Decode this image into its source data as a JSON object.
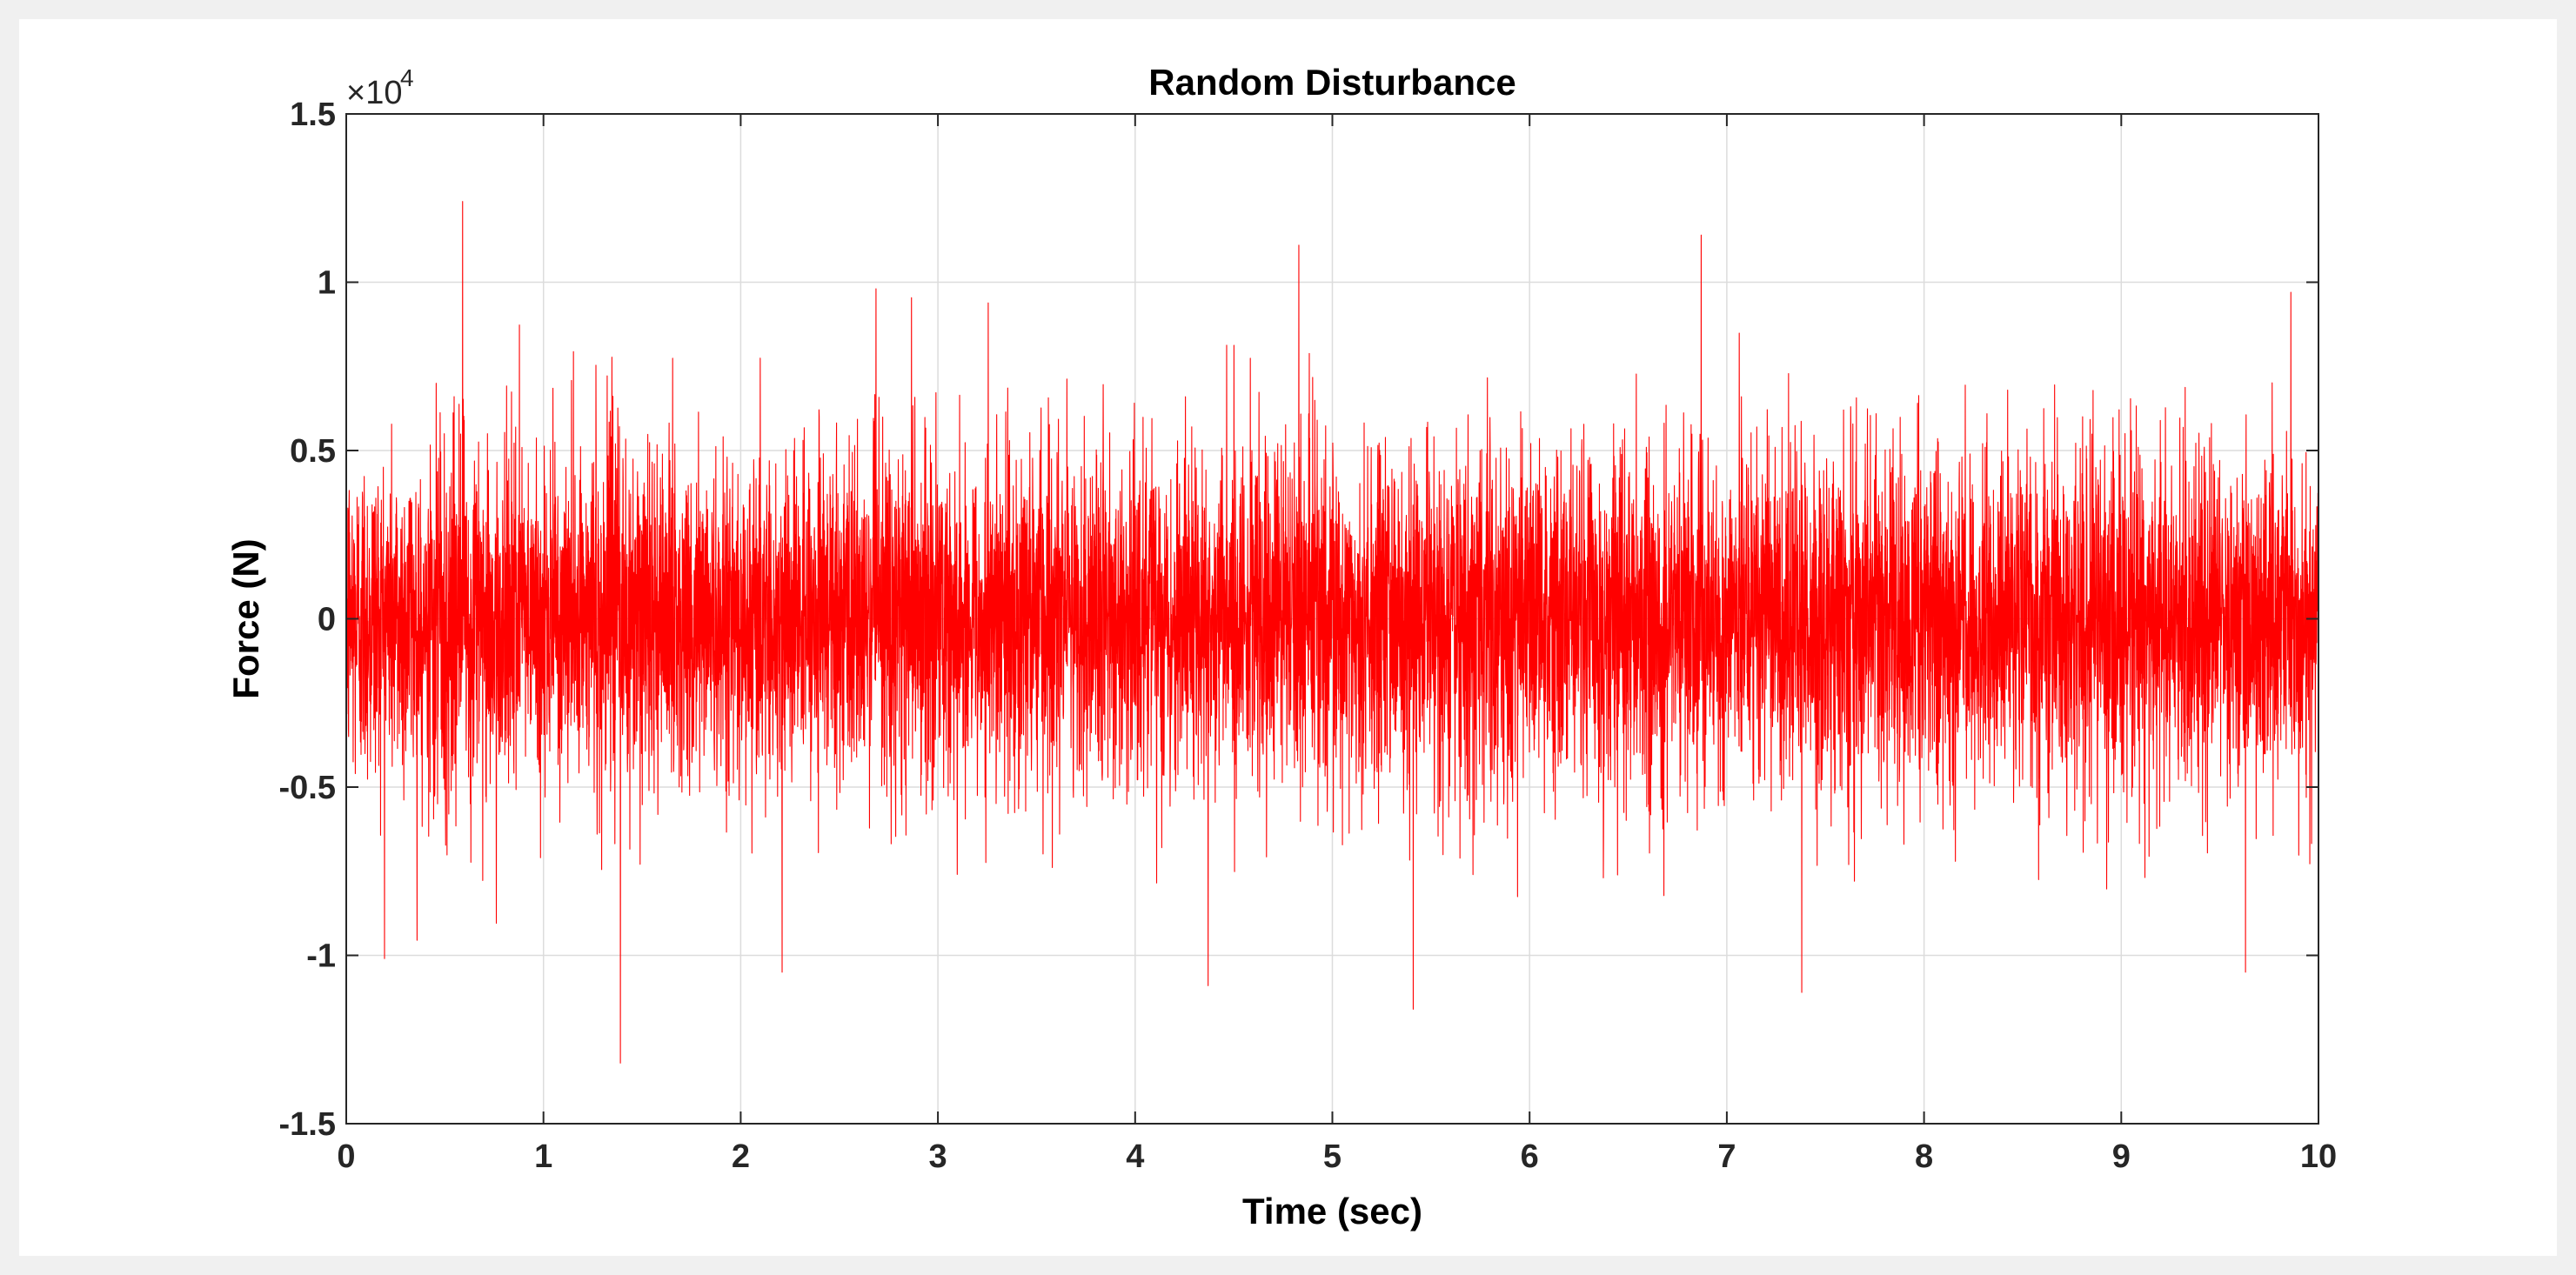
{
  "chart_data": {
    "type": "line",
    "title": "Random Disturbance",
    "xlabel": "Time (sec)",
    "ylabel": "Force (N)",
    "xlim": [
      0,
      10
    ],
    "ylim": [
      -15000,
      15000
    ],
    "x_ticks": [
      0,
      1,
      2,
      3,
      4,
      5,
      6,
      7,
      8,
      9,
      10
    ],
    "x_tick_labels": [
      "0",
      "1",
      "2",
      "3",
      "4",
      "5",
      "6",
      "7",
      "8",
      "9",
      "10"
    ],
    "y_ticks": [
      -15000,
      -10000,
      -5000,
      0,
      5000,
      10000,
      15000
    ],
    "y_tick_labels": [
      "-1.5",
      "-1",
      "-0.5",
      "0",
      "0.5",
      "1",
      "1.5"
    ],
    "y_exponent_label": "×10",
    "y_exponent_power": "4",
    "grid": true,
    "line_color": "#ff0000",
    "series": [
      {
        "sample_interval": 0.001,
        "samples_count": 10001,
        "mean": 0,
        "std_dev": 2500,
        "notable_peaks": [
          {
            "x": 0.59,
            "y": 12400
          },
          {
            "x": 4.83,
            "y": 11100
          },
          {
            "x": 6.87,
            "y": 11400
          },
          {
            "x": 9.86,
            "y": 9700
          },
          {
            "x": 1.39,
            "y": -13200
          },
          {
            "x": 5.41,
            "y": -11600
          },
          {
            "x": 7.38,
            "y": -11100
          },
          {
            "x": 4.37,
            "y": -10900
          },
          {
            "x": 9.63,
            "y": -10500
          },
          {
            "x": 2.21,
            "y": -10500
          }
        ]
      }
    ]
  }
}
